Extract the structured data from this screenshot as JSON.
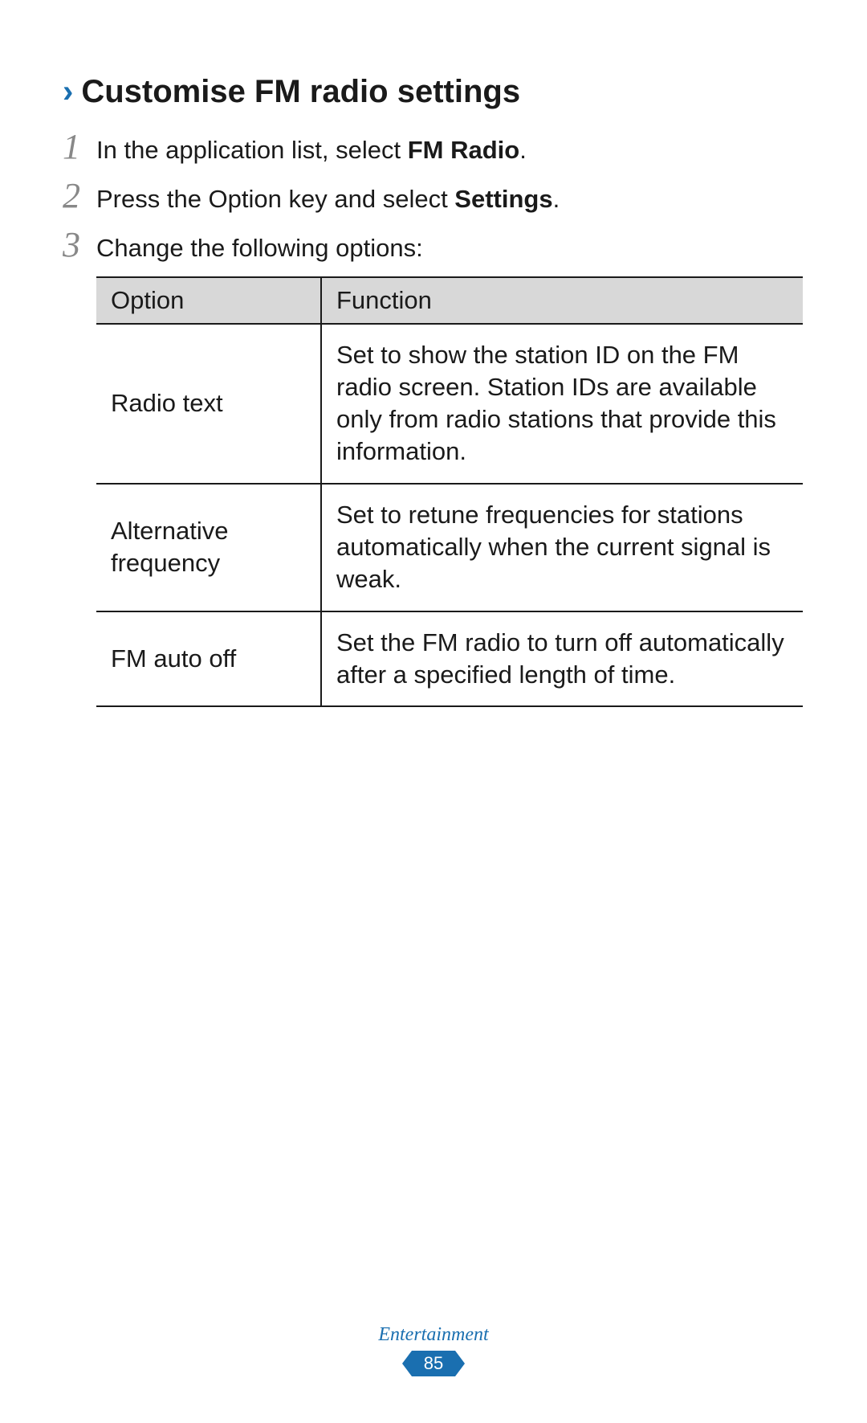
{
  "heading": {
    "chevron": "›",
    "text": "Customise FM radio settings"
  },
  "steps": [
    {
      "number": "1",
      "prefix": "In the application list, select ",
      "bold": "FM Radio",
      "suffix": "."
    },
    {
      "number": "2",
      "prefix": "Press the Option key and select ",
      "bold": "Settings",
      "suffix": "."
    },
    {
      "number": "3",
      "prefix": "Change the following options:",
      "bold": "",
      "suffix": ""
    }
  ],
  "table": {
    "headers": {
      "option": "Option",
      "function": "Function"
    },
    "rows": [
      {
        "option": "Radio text",
        "function": "Set to show the station ID on the FM radio screen. Station IDs are available only from radio stations that provide this information."
      },
      {
        "option": "Alternative frequency",
        "function": "Set to retune frequencies for stations automatically when the current signal is weak."
      },
      {
        "option": "FM auto off",
        "function": "Set the FM radio to turn off automatically after a specified length of time."
      }
    ],
    "columns": {
      "option_width": 280,
      "function_width": 600
    },
    "header_bg": "#d8d8d8",
    "border_color": "#1a1a1a"
  },
  "footer": {
    "category": "Entertainment",
    "page_number": "85",
    "badge_color": "#1a6fb0",
    "badge_text_color": "#ffffff"
  },
  "typography": {
    "heading_fontsize": 40,
    "body_fontsize": 31,
    "step_number_fontsize": 44,
    "footer_category_fontsize": 24,
    "page_number_fontsize": 22,
    "accent_color": "#1a6fb0",
    "step_number_color": "#888888",
    "text_color": "#1a1a1a"
  }
}
